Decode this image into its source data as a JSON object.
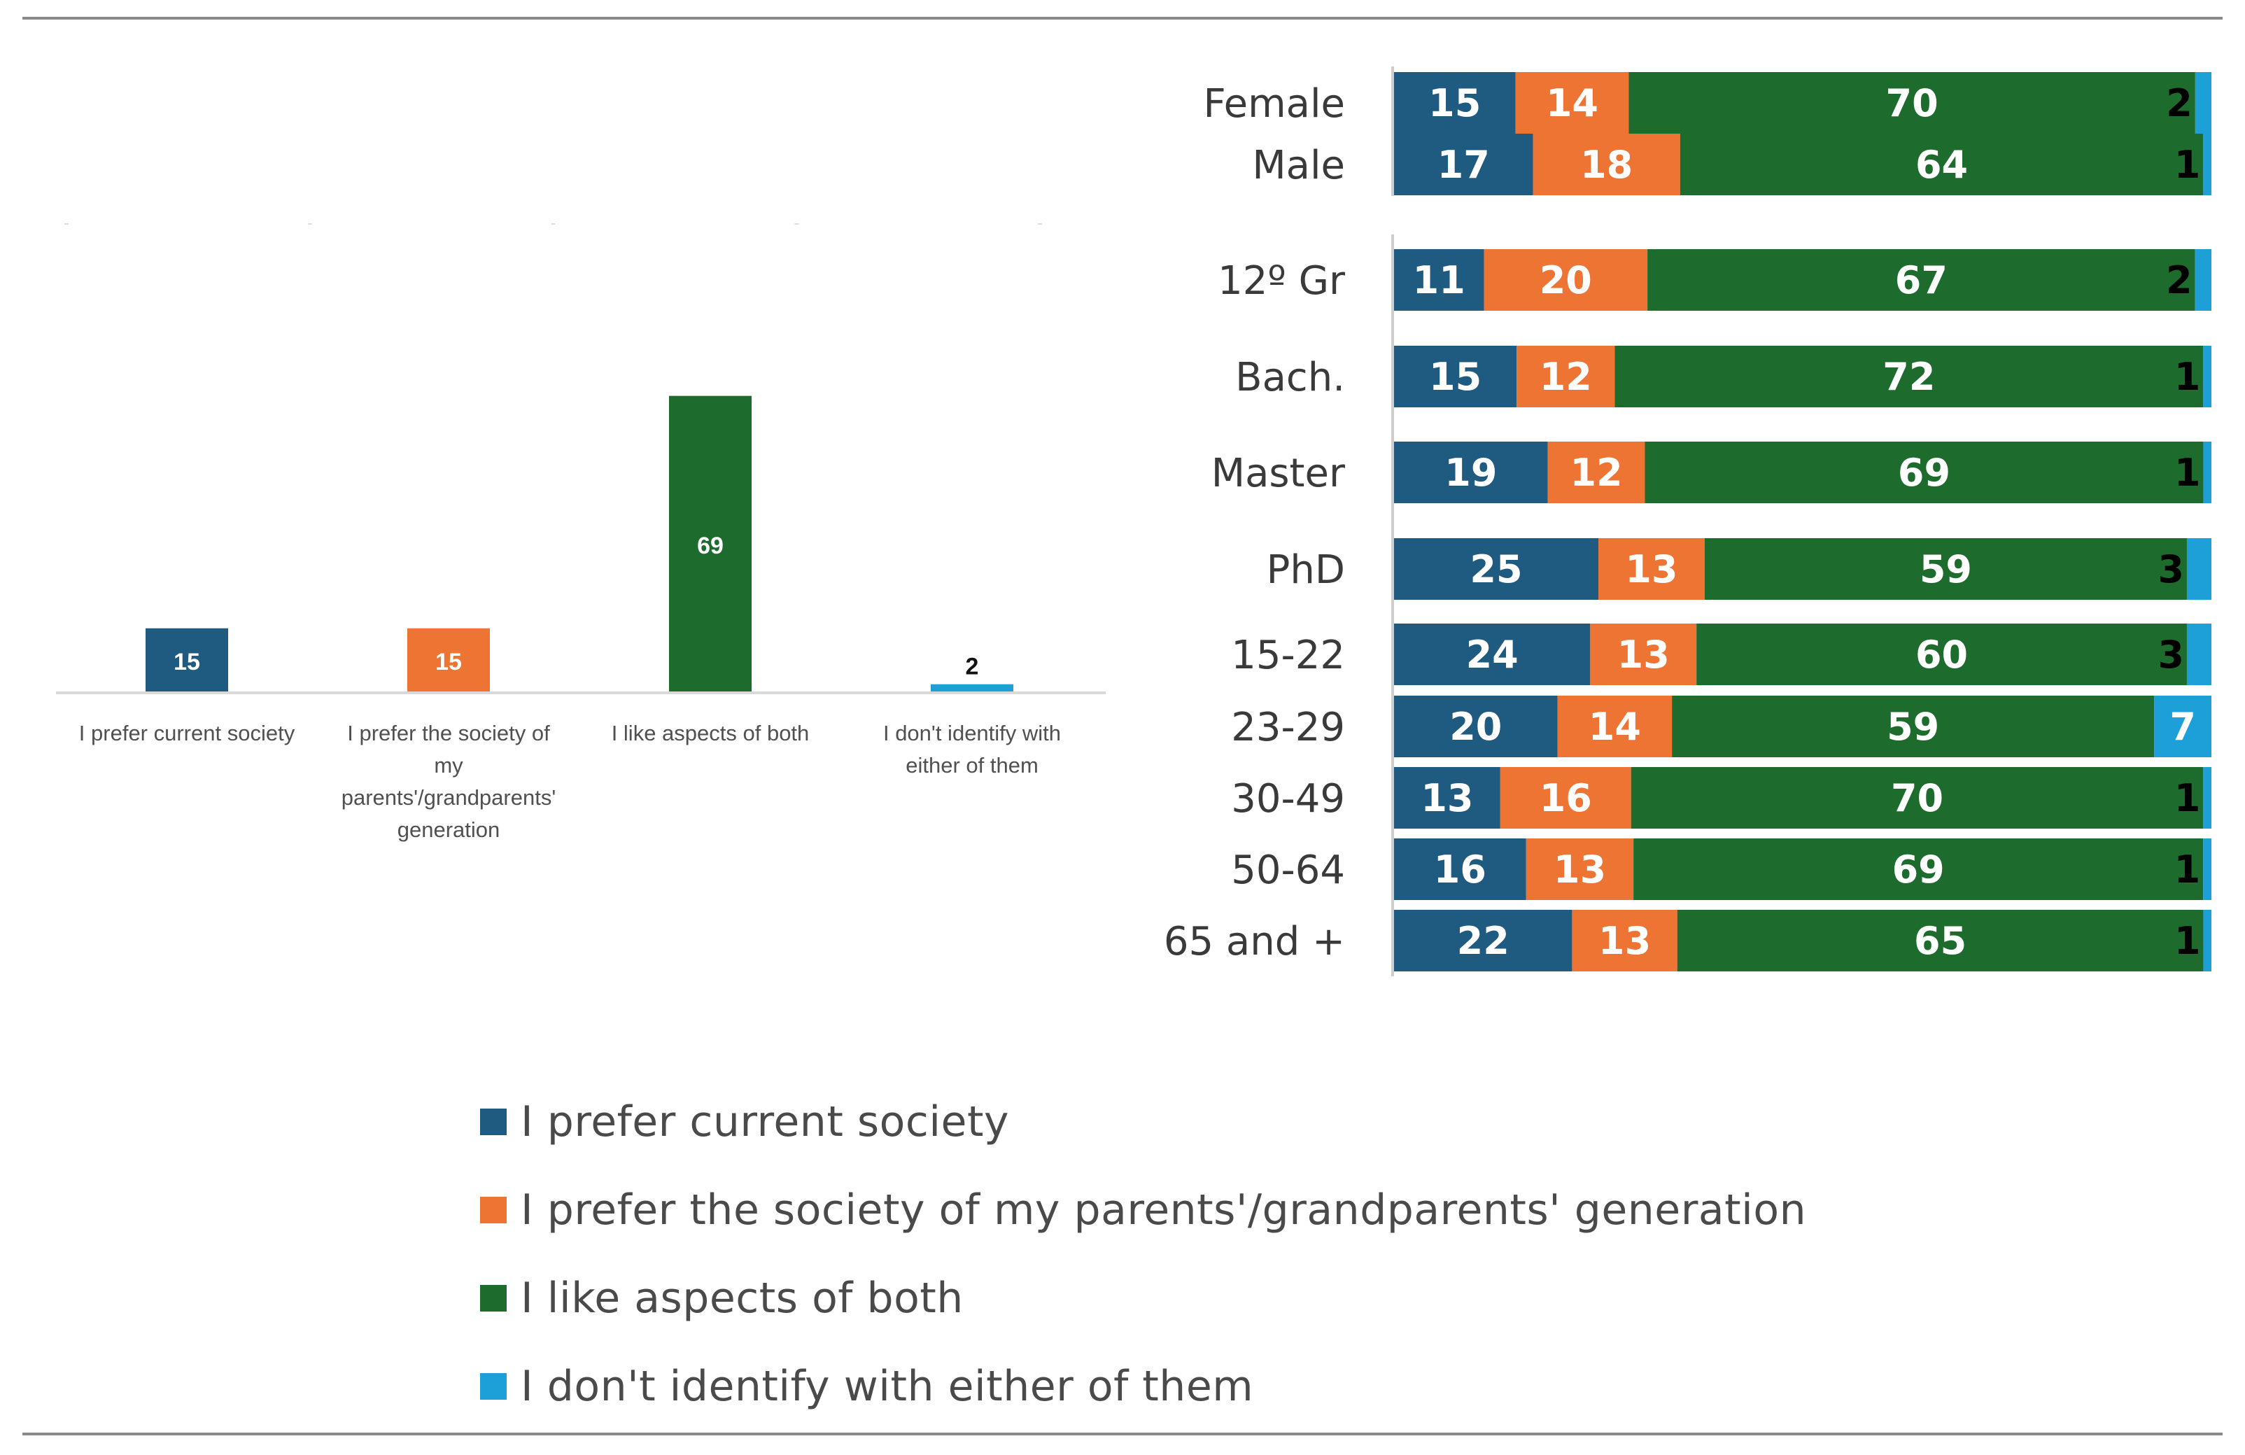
{
  "colors": {
    "current": "#1f5a80",
    "parents": "#ed7432",
    "both": "#1e6b2e",
    "neither": "#1d9fd8"
  },
  "chart_data": [
    {
      "type": "bar",
      "title": "",
      "xlabel": "",
      "ylabel": "",
      "ylim": [
        0,
        75
      ],
      "grid": false,
      "categories": [
        "I prefer current society",
        "I prefer the society of my parents'/grandparents' generation",
        "I like aspects of both",
        "I don't identify with either of them"
      ],
      "category_lines": [
        [
          "I prefer current society"
        ],
        [
          "I prefer the society of",
          "my",
          "parents'/grandparents'",
          "generation"
        ],
        [
          "I like aspects of both"
        ],
        [
          "I don't identify with",
          "either of them"
        ]
      ],
      "values": [
        15,
        15,
        69,
        2
      ],
      "color_keys": [
        "current",
        "parents",
        "both",
        "neither"
      ]
    },
    {
      "type": "bar",
      "orientation": "horizontal",
      "stacked": true,
      "title": "",
      "xlim": [
        0,
        100
      ],
      "groups": [
        {
          "rows": [
            "Female",
            "Male"
          ]
        },
        {
          "rows": [
            "12º Gr",
            "Bach.",
            "Master",
            "PhD",
            "15-22",
            "23-29",
            "30-49",
            "50-64",
            "65 and +"
          ]
        }
      ],
      "categories": [
        "Female",
        "Male",
        "12º Gr",
        "Bach.",
        "Master",
        "PhD",
        "15-22",
        "23-29",
        "30-49",
        "50-64",
        "65 and +"
      ],
      "series": [
        {
          "name": "I prefer current society",
          "color_key": "current",
          "values": [
            15,
            17,
            11,
            15,
            19,
            25,
            24,
            20,
            13,
            16,
            22
          ]
        },
        {
          "name": "I prefer the society of my parents'/grandparents' generation",
          "color_key": "parents",
          "values": [
            14,
            18,
            20,
            12,
            12,
            13,
            13,
            14,
            16,
            13,
            13
          ]
        },
        {
          "name": "I like aspects of both",
          "color_key": "both",
          "values": [
            70,
            64,
            67,
            72,
            69,
            59,
            60,
            59,
            70,
            69,
            65
          ]
        },
        {
          "name": "I don't identify with either of them",
          "color_key": "neither",
          "values": [
            2,
            1,
            2,
            1,
            1,
            3,
            3,
            7,
            1,
            1,
            1
          ]
        }
      ],
      "legend": "bottom"
    }
  ],
  "legend": [
    {
      "label": "I prefer current society",
      "color_key": "current"
    },
    {
      "label": "I prefer the society of my parents'/grandparents' generation",
      "color_key": "parents"
    },
    {
      "label": "I like aspects of both",
      "color_key": "both"
    },
    {
      "label": "I don't identify with either of them",
      "color_key": "neither"
    }
  ]
}
